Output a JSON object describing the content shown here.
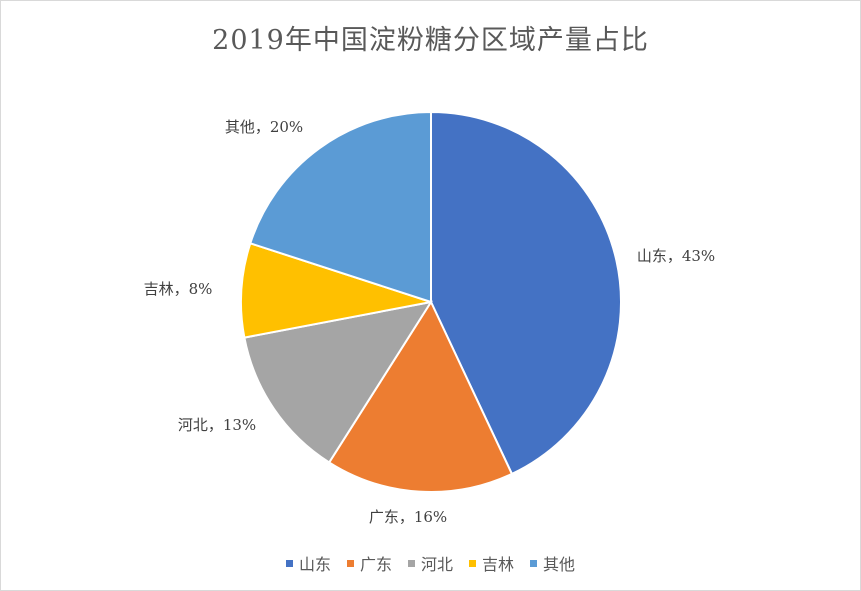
{
  "chart_data": {
    "type": "pie",
    "title": "2019年中国淀粉糖分区域产量占比",
    "categories": [
      "山东",
      "广东",
      "河北",
      "吉林",
      "其他"
    ],
    "values": [
      43,
      16,
      13,
      8,
      20
    ],
    "data_labels": [
      "山东，43%",
      "广东，16%",
      "河北，13%",
      "吉林，8%",
      "其他，20%"
    ],
    "colors": [
      "#4472C4",
      "#ED7D31",
      "#A5A5A5",
      "#FFC000",
      "#5B9BD5"
    ],
    "legend_position": "bottom"
  }
}
